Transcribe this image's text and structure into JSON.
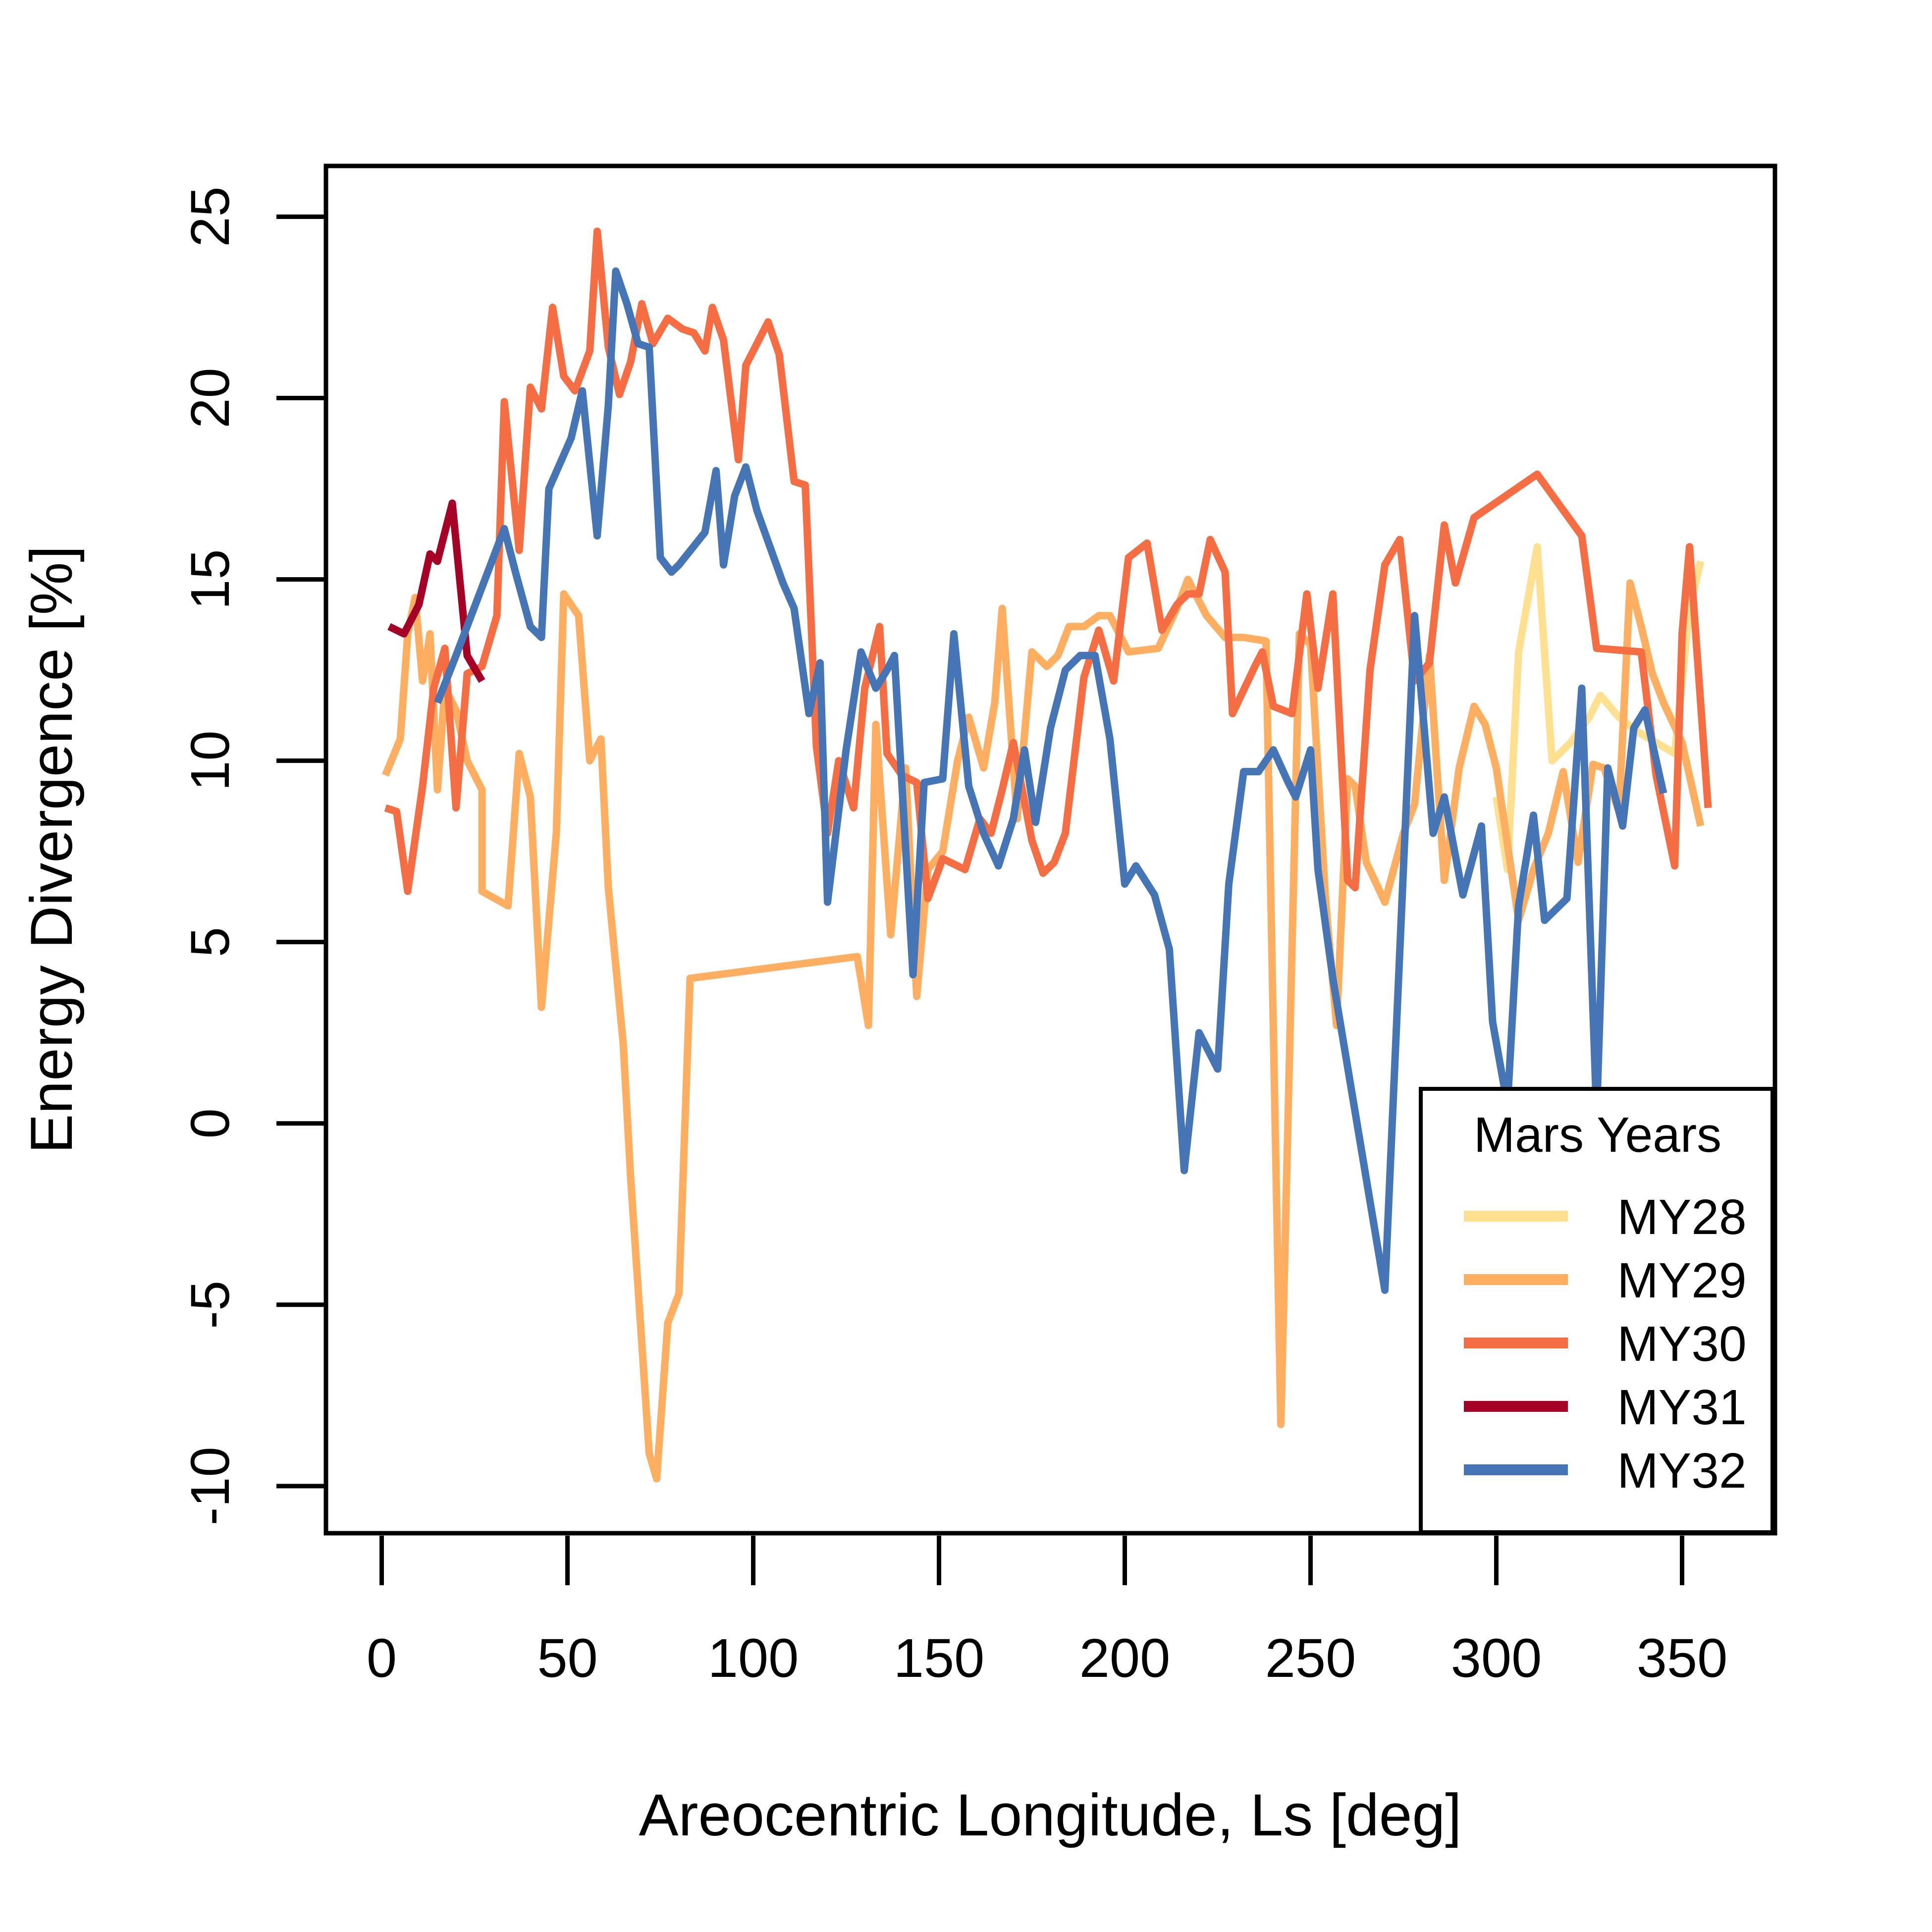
{
  "chart_data": {
    "type": "line",
    "title": "",
    "xlabel": "Areocentric Longitude, Ls [deg]",
    "ylabel": "Energy Divergence [%]",
    "xlim": [
      -15,
      375
    ],
    "ylim": [
      -11.3,
      26.4
    ],
    "xticks": [
      0,
      50,
      100,
      150,
      200,
      250,
      300,
      350
    ],
    "yticks": [
      -10,
      -5,
      0,
      5,
      10,
      15,
      20,
      25
    ],
    "grid": false,
    "legend": {
      "title": "Mars Years",
      "placement": "bottom-right"
    },
    "series": [
      {
        "name": "MY28",
        "color": "#fee090",
        "points": [
          [
            300,
            9.0
          ],
          [
            303,
            7.0
          ],
          [
            306,
            13.0
          ],
          [
            311,
            15.9
          ],
          [
            315,
            10.0
          ],
          [
            320,
            10.5
          ],
          [
            325,
            11.2
          ],
          [
            328,
            11.8
          ],
          [
            333,
            11.2
          ],
          [
            338,
            10.8
          ],
          [
            343,
            10.5
          ],
          [
            348,
            10.2
          ],
          [
            352,
            14.2
          ],
          [
            355,
            15.5
          ]
        ]
      },
      {
        "name": "MY29",
        "color": "#fdae61",
        "points": [
          [
            1,
            9.6
          ],
          [
            5,
            10.6
          ],
          [
            7,
            13.5
          ],
          [
            9,
            14.5
          ],
          [
            11,
            12.2
          ],
          [
            13,
            13.5
          ],
          [
            15,
            9.2
          ],
          [
            17,
            12.0
          ],
          [
            20,
            11.4
          ],
          [
            23,
            10.0
          ],
          [
            27,
            9.2
          ],
          [
            27,
            6.4
          ],
          [
            34,
            6.0
          ],
          [
            37,
            10.2
          ],
          [
            40,
            9.0
          ],
          [
            43,
            3.2
          ],
          [
            47,
            8.0
          ],
          [
            49,
            14.6
          ],
          [
            53,
            14.0
          ],
          [
            56,
            10.0
          ],
          [
            59,
            10.6
          ],
          [
            61,
            6.5
          ],
          [
            65,
            2.2
          ],
          [
            67,
            -1.5
          ],
          [
            72,
            -9.1
          ],
          [
            74,
            -9.8
          ],
          [
            77,
            -5.5
          ],
          [
            80,
            -4.7
          ],
          [
            83,
            4.0
          ],
          [
            128,
            4.6
          ],
          [
            131,
            2.7
          ],
          [
            133,
            11.0
          ],
          [
            137,
            5.2
          ],
          [
            141,
            9.8
          ],
          [
            144,
            3.5
          ],
          [
            147,
            7.0
          ],
          [
            151,
            7.5
          ],
          [
            155,
            10.0
          ],
          [
            158,
            11.2
          ],
          [
            162,
            9.8
          ],
          [
            165,
            11.6
          ],
          [
            167,
            14.2
          ],
          [
            171,
            8.4
          ],
          [
            175,
            13.0
          ],
          [
            179,
            12.6
          ],
          [
            182,
            12.9
          ],
          [
            185,
            13.7
          ],
          [
            189,
            13.7
          ],
          [
            193,
            14.0
          ],
          [
            196,
            14.0
          ],
          [
            201,
            13.0
          ],
          [
            209,
            13.1
          ],
          [
            214,
            14.2
          ],
          [
            217,
            15.0
          ],
          [
            222,
            14.0
          ],
          [
            227,
            13.4
          ],
          [
            232,
            13.4
          ],
          [
            238,
            13.3
          ],
          [
            242,
            -8.3
          ],
          [
            247,
            13.5
          ],
          [
            250,
            13.2
          ],
          [
            254,
            6.2
          ],
          [
            257,
            2.7
          ],
          [
            260,
            9.5
          ],
          [
            262,
            9.3
          ],
          [
            265,
            7.2
          ],
          [
            270,
            6.1
          ],
          [
            275,
            8.0
          ],
          [
            278,
            8.8
          ],
          [
            282,
            12.9
          ],
          [
            286,
            6.7
          ],
          [
            290,
            9.8
          ],
          [
            294,
            11.5
          ],
          [
            297,
            11.0
          ],
          [
            300,
            9.8
          ],
          [
            306,
            5.6
          ],
          [
            310,
            7.0
          ],
          [
            314,
            8.0
          ],
          [
            318,
            9.7
          ],
          [
            322,
            7.2
          ],
          [
            326,
            9.9
          ],
          [
            329,
            9.8
          ],
          [
            333,
            8.6
          ],
          [
            336,
            14.9
          ],
          [
            339,
            13.7
          ],
          [
            342,
            12.4
          ],
          [
            345,
            11.6
          ],
          [
            350,
            10.5
          ],
          [
            355,
            8.2
          ]
        ]
      },
      {
        "name": "MY30",
        "color": "#f46d43",
        "points": [
          [
            1,
            8.7
          ],
          [
            4,
            8.6
          ],
          [
            7,
            6.4
          ],
          [
            11,
            9.3
          ],
          [
            14,
            12.0
          ],
          [
            17,
            13.1
          ],
          [
            20,
            8.7
          ],
          [
            23,
            12.4
          ],
          [
            27,
            12.6
          ],
          [
            31,
            14.0
          ],
          [
            33,
            19.9
          ],
          [
            37,
            15.8
          ],
          [
            40,
            20.3
          ],
          [
            43,
            19.7
          ],
          [
            46,
            22.5
          ],
          [
            49,
            20.6
          ],
          [
            52,
            20.2
          ],
          [
            56,
            21.3
          ],
          [
            58,
            24.6
          ],
          [
            61,
            21.4
          ],
          [
            64,
            20.1
          ],
          [
            67,
            21.0
          ],
          [
            70,
            22.6
          ],
          [
            73,
            21.5
          ],
          [
            77,
            22.2
          ],
          [
            81,
            21.9
          ],
          [
            84,
            21.8
          ],
          [
            87,
            21.3
          ],
          [
            89,
            22.5
          ],
          [
            92,
            21.6
          ],
          [
            96,
            18.3
          ],
          [
            98,
            20.9
          ],
          [
            101,
            21.5
          ],
          [
            104,
            22.1
          ],
          [
            107,
            21.2
          ],
          [
            111,
            17.7
          ],
          [
            114,
            17.6
          ],
          [
            117,
            10.4
          ],
          [
            120,
            8.0
          ],
          [
            123,
            10.0
          ],
          [
            127,
            8.7
          ],
          [
            130,
            12.0
          ],
          [
            134,
            13.7
          ],
          [
            136,
            10.2
          ],
          [
            140,
            9.6
          ],
          [
            144,
            9.4
          ],
          [
            147,
            6.2
          ],
          [
            151,
            7.3
          ],
          [
            157,
            7.0
          ],
          [
            161,
            8.4
          ],
          [
            164,
            8.0
          ],
          [
            167,
            9.2
          ],
          [
            170,
            10.5
          ],
          [
            175,
            7.8
          ],
          [
            178,
            6.9
          ],
          [
            181,
            7.2
          ],
          [
            184,
            8.0
          ],
          [
            189,
            12.3
          ],
          [
            193,
            13.6
          ],
          [
            197,
            12.2
          ],
          [
            201,
            15.6
          ],
          [
            206,
            16.0
          ],
          [
            210,
            13.6
          ],
          [
            214,
            14.3
          ],
          [
            217,
            14.6
          ],
          [
            220,
            14.6
          ],
          [
            223,
            16.1
          ],
          [
            227,
            15.2
          ],
          [
            229,
            11.3
          ],
          [
            235,
            12.6
          ],
          [
            237,
            13.0
          ],
          [
            240,
            11.5
          ],
          [
            245,
            11.3
          ],
          [
            249,
            14.6
          ],
          [
            252,
            12.0
          ],
          [
            256,
            14.6
          ],
          [
            260,
            6.7
          ],
          [
            262,
            6.5
          ],
          [
            266,
            12.5
          ],
          [
            270,
            15.4
          ],
          [
            274,
            16.1
          ],
          [
            278,
            12.2
          ],
          [
            282,
            12.7
          ],
          [
            286,
            16.5
          ],
          [
            289,
            14.9
          ],
          [
            294,
            16.7
          ],
          [
            311,
            17.9
          ],
          [
            323,
            16.2
          ],
          [
            327,
            13.1
          ],
          [
            339,
            13.0
          ],
          [
            343,
            9.6
          ],
          [
            348,
            7.1
          ],
          [
            350,
            13.5
          ],
          [
            352,
            15.9
          ],
          [
            357,
            8.7
          ]
        ]
      },
      {
        "name": "MY31",
        "color": "#a50026",
        "points": [
          [
            2,
            13.7
          ],
          [
            6,
            13.5
          ],
          [
            10,
            14.3
          ],
          [
            13,
            15.7
          ],
          [
            15,
            15.5
          ],
          [
            19,
            17.1
          ],
          [
            23,
            12.9
          ],
          [
            27,
            12.2
          ]
        ]
      },
      {
        "name": "MY32",
        "color": "#4575b4",
        "points": [
          [
            15,
            11.6
          ],
          [
            20,
            12.9
          ],
          [
            33,
            16.4
          ],
          [
            36,
            15.2
          ],
          [
            40,
            13.7
          ],
          [
            43,
            13.4
          ],
          [
            45,
            17.5
          ],
          [
            51,
            18.9
          ],
          [
            54,
            20.2
          ],
          [
            58,
            16.2
          ],
          [
            61,
            19.8
          ],
          [
            63,
            23.5
          ],
          [
            66,
            22.6
          ],
          [
            69,
            21.5
          ],
          [
            72,
            21.4
          ],
          [
            75,
            15.6
          ],
          [
            78,
            15.2
          ],
          [
            80,
            15.4
          ],
          [
            87,
            16.3
          ],
          [
            90,
            18.0
          ],
          [
            92,
            15.4
          ],
          [
            95,
            17.3
          ],
          [
            98,
            18.1
          ],
          [
            101,
            16.9
          ],
          [
            108,
            14.9
          ],
          [
            111,
            14.2
          ],
          [
            115,
            11.3
          ],
          [
            118,
            12.7
          ],
          [
            120,
            6.1
          ],
          [
            125,
            10.3
          ],
          [
            129,
            13.0
          ],
          [
            133,
            12.0
          ],
          [
            136,
            12.5
          ],
          [
            138,
            12.9
          ],
          [
            143,
            4.1
          ],
          [
            146,
            9.4
          ],
          [
            151,
            9.5
          ],
          [
            154,
            13.5
          ],
          [
            158,
            9.3
          ],
          [
            162,
            8.0
          ],
          [
            166,
            7.1
          ],
          [
            170,
            8.4
          ],
          [
            173,
            10.3
          ],
          [
            176,
            8.3
          ],
          [
            180,
            10.9
          ],
          [
            184,
            12.5
          ],
          [
            188,
            12.9
          ],
          [
            192,
            12.9
          ],
          [
            196,
            10.6
          ],
          [
            200,
            6.6
          ],
          [
            203,
            7.1
          ],
          [
            208,
            6.3
          ],
          [
            212,
            4.8
          ],
          [
            216,
            -1.3
          ],
          [
            220,
            2.5
          ],
          [
            225,
            1.5
          ],
          [
            228,
            6.6
          ],
          [
            232,
            9.7
          ],
          [
            236,
            9.7
          ],
          [
            240,
            10.3
          ],
          [
            244,
            9.4
          ],
          [
            246,
            9.0
          ],
          [
            250,
            10.3
          ],
          [
            252,
            7.0
          ],
          [
            256,
            4.0
          ],
          [
            270,
            -4.6
          ],
          [
            278,
            14.0
          ],
          [
            283,
            8.0
          ],
          [
            286,
            9.0
          ],
          [
            291,
            6.3
          ],
          [
            296,
            8.2
          ],
          [
            299,
            2.8
          ],
          [
            303,
            0.5
          ],
          [
            306,
            6.0
          ],
          [
            310,
            8.5
          ],
          [
            313,
            5.6
          ],
          [
            319,
            6.2
          ],
          [
            323,
            12.0
          ],
          [
            327,
            0.2
          ],
          [
            330,
            9.8
          ],
          [
            334,
            8.2
          ],
          [
            337,
            10.9
          ],
          [
            340,
            11.4
          ],
          [
            345,
            9.1
          ]
        ]
      }
    ]
  }
}
